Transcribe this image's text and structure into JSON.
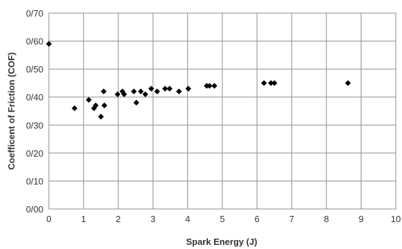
{
  "chart_data": {
    "type": "scatter",
    "title": "",
    "xlabel": "Spark Energy (J)",
    "ylabel": "Coefficent of Friction (COF)",
    "xlim": [
      0,
      10
    ],
    "ylim": [
      0,
      0.7
    ],
    "x_ticks": [
      0,
      1,
      2,
      3,
      4,
      5,
      6,
      7,
      8,
      9,
      10
    ],
    "x_tick_labels": [
      "0",
      "1",
      "2",
      "3",
      "4",
      "5",
      "6",
      "7",
      "8",
      "9",
      "10"
    ],
    "y_ticks": [
      0,
      0.1,
      0.2,
      0.3,
      0.4,
      0.5,
      0.6,
      0.7
    ],
    "y_tick_labels": [
      "0/00",
      "0/10",
      "0/20",
      "0/30",
      "0/40",
      "0/50",
      "0/60",
      "0/70"
    ],
    "grid": true,
    "legend": "none",
    "marker": "diamond",
    "marker_color": "#000000",
    "series": [
      {
        "points": [
          {
            "x": 0.0,
            "y": 0.59
          },
          {
            "x": 0.74,
            "y": 0.36
          },
          {
            "x": 1.15,
            "y": 0.39
          },
          {
            "x": 1.3,
            "y": 0.36
          },
          {
            "x": 1.35,
            "y": 0.37
          },
          {
            "x": 1.5,
            "y": 0.33
          },
          {
            "x": 1.58,
            "y": 0.42
          },
          {
            "x": 1.6,
            "y": 0.37
          },
          {
            "x": 1.98,
            "y": 0.41
          },
          {
            "x": 2.12,
            "y": 0.42
          },
          {
            "x": 2.17,
            "y": 0.41
          },
          {
            "x": 2.45,
            "y": 0.42
          },
          {
            "x": 2.52,
            "y": 0.38
          },
          {
            "x": 2.65,
            "y": 0.42
          },
          {
            "x": 2.78,
            "y": 0.41
          },
          {
            "x": 2.95,
            "y": 0.43
          },
          {
            "x": 3.12,
            "y": 0.42
          },
          {
            "x": 3.35,
            "y": 0.43
          },
          {
            "x": 3.48,
            "y": 0.43
          },
          {
            "x": 3.75,
            "y": 0.42
          },
          {
            "x": 4.02,
            "y": 0.43
          },
          {
            "x": 4.55,
            "y": 0.44
          },
          {
            "x": 4.63,
            "y": 0.44
          },
          {
            "x": 4.77,
            "y": 0.44
          },
          {
            "x": 6.2,
            "y": 0.45
          },
          {
            "x": 6.4,
            "y": 0.45
          },
          {
            "x": 6.5,
            "y": 0.45
          },
          {
            "x": 8.62,
            "y": 0.45
          }
        ]
      }
    ]
  }
}
